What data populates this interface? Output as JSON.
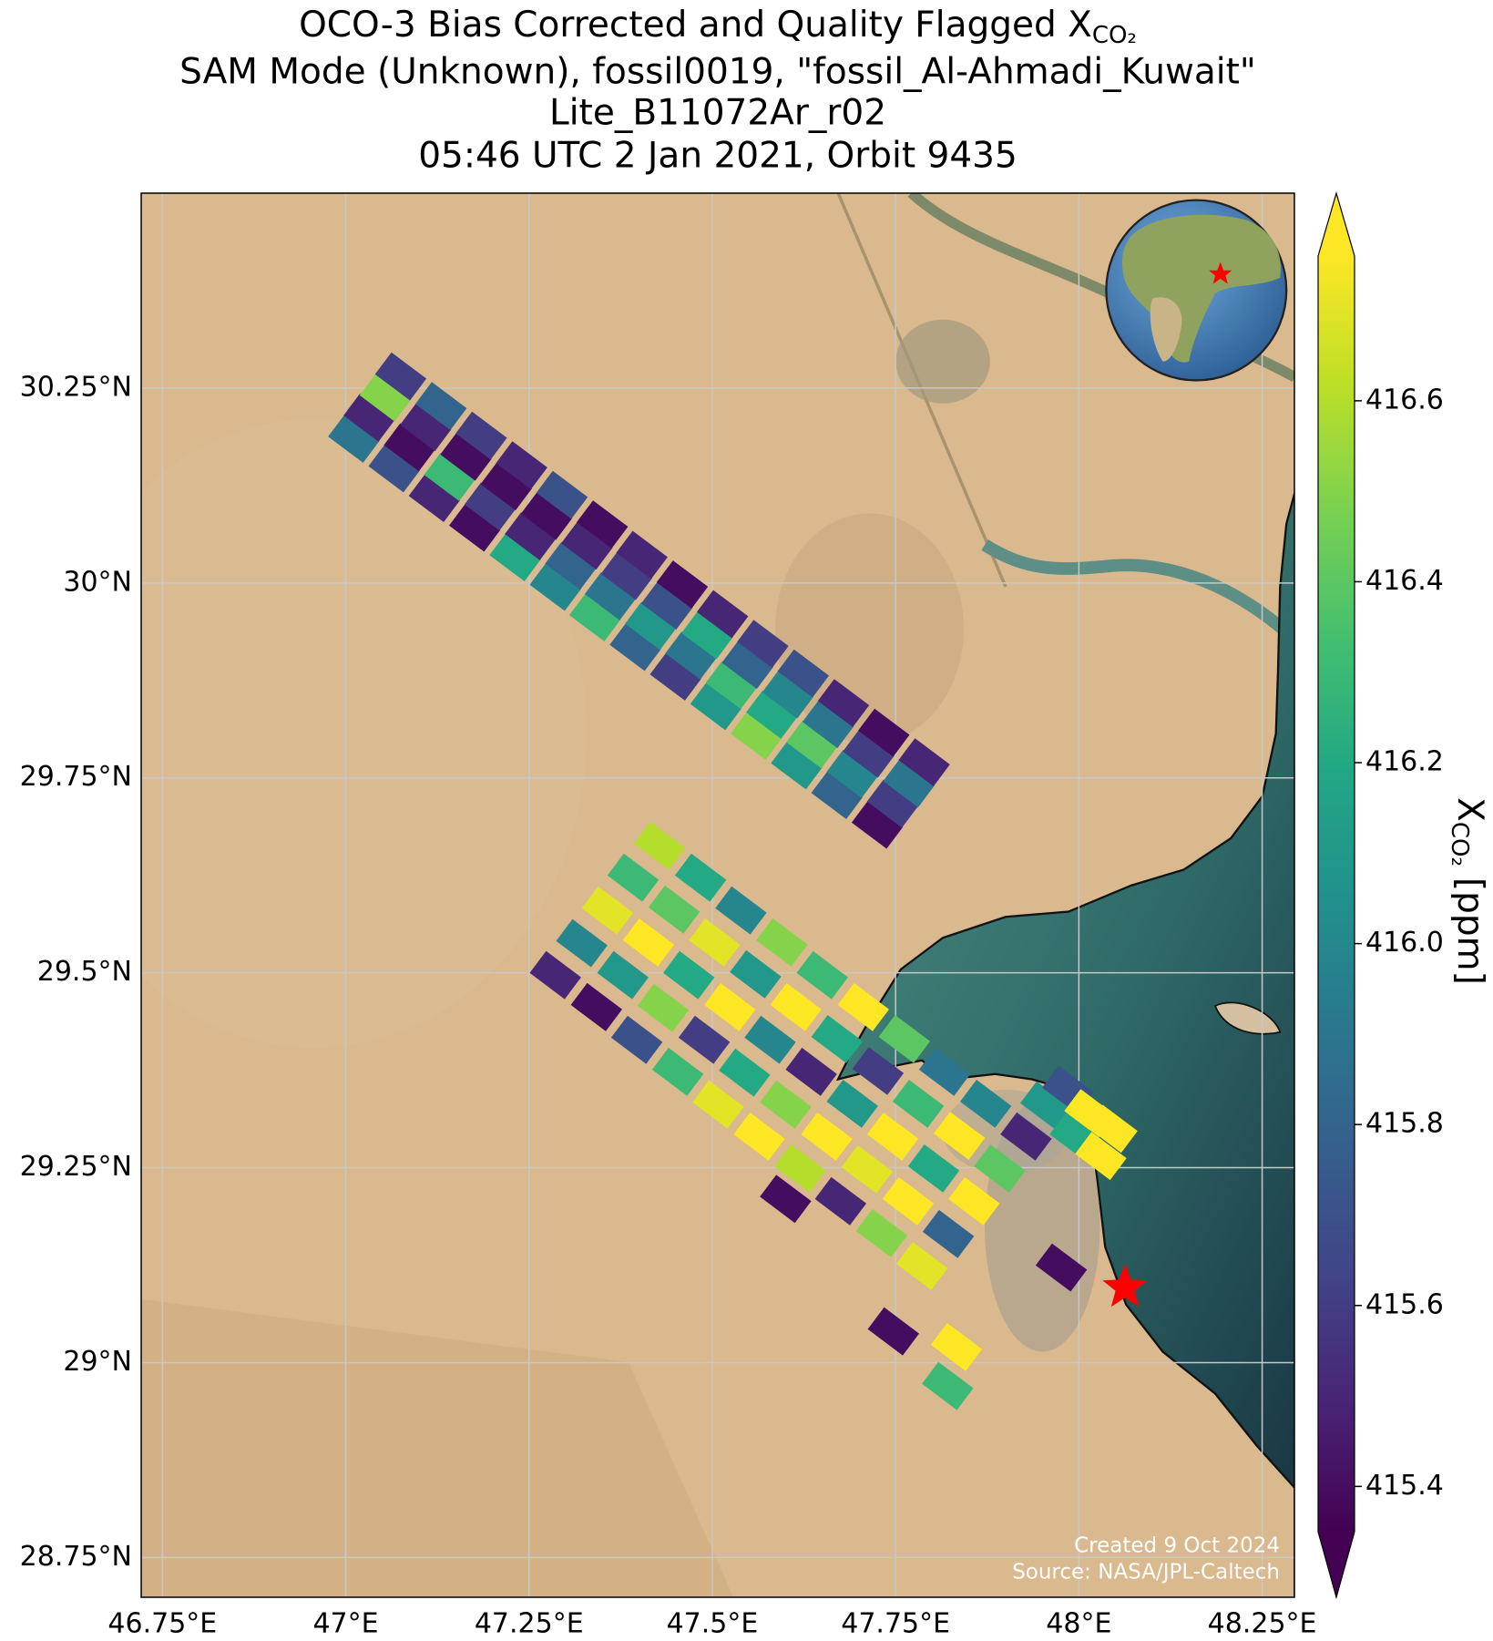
{
  "chart_data": {
    "type": "map",
    "title": [
      {
        "text": "OCO-3 Bias Corrected and Quality Flagged X",
        "subscript": "CO₂"
      },
      "SAM Mode (Unknown), fossil0019, \"fossil_Al-Ahmadi_Kuwait\"",
      "Lite_B11072Ar_r02",
      "05:46 UTC 2 Jan 2021, Orbit 9435"
    ],
    "xlim": [
      46.721,
      48.294
    ],
    "ylim": [
      28.699,
      30.5
    ],
    "xticks": [
      {
        "value": 46.75,
        "label": "46.75°E"
      },
      {
        "value": 47,
        "label": "47°E"
      },
      {
        "value": 47.25,
        "label": "47.25°E"
      },
      {
        "value": 47.5,
        "label": "47.5°E"
      },
      {
        "value": 47.75,
        "label": "47.75°E"
      },
      {
        "value": 48,
        "label": "48°E"
      },
      {
        "value": 48.25,
        "label": "48.25°E"
      }
    ],
    "yticks": [
      {
        "value": 28.75,
        "label": "28.75°N"
      },
      {
        "value": 29,
        "label": "29°N"
      },
      {
        "value": 29.25,
        "label": "29.25°N"
      },
      {
        "value": 29.5,
        "label": "29.5°N"
      },
      {
        "value": 29.75,
        "label": "29.75°N"
      },
      {
        "value": 30,
        "label": "30°N"
      },
      {
        "value": 30.25,
        "label": "30.25°N"
      }
    ],
    "grid": true,
    "colormap": "viridis",
    "clim": [
      415.35,
      416.76
    ],
    "colorbar_ticks": [
      415.4,
      415.6,
      415.8,
      {
        "value": 416,
        "label": "416.0"
      },
      416.2,
      416.4,
      416.6
    ],
    "colorbar_label": {
      "text": "X",
      "subscript": "CO₂",
      "unit": "[ppm]"
    },
    "target": {
      "lon": 48.063,
      "lat": 29.096,
      "color": "#ff0000"
    },
    "credits": [
      "Created 9 Oct 2024",
      "Source: NASA/JPL-Caltech"
    ],
    "soundings": {
      "lon": [
        47.011,
        47.032,
        47.054,
        47.075,
        47.066,
        47.087,
        47.109,
        47.13,
        47.121,
        47.142,
        47.164,
        47.185,
        47.176,
        47.197,
        47.219,
        47.24,
        47.231,
        47.252,
        47.274,
        47.295,
        47.286,
        47.307,
        47.329,
        47.35,
        47.34,
        47.361,
        47.383,
        47.404,
        47.395,
        47.416,
        47.438,
        47.459,
        47.45,
        47.471,
        47.493,
        47.514,
        47.505,
        47.526,
        47.548,
        47.569,
        47.56,
        47.581,
        47.603,
        47.624,
        47.615,
        47.636,
        47.658,
        47.679,
        47.67,
        47.691,
        47.713,
        47.734,
        47.725,
        47.746,
        47.768,
        47.789,
        47.286,
        47.322,
        47.357,
        47.392,
        47.428,
        47.342,
        47.378,
        47.413,
        47.448,
        47.484,
        47.397,
        47.433,
        47.468,
        47.503,
        47.539,
        47.453,
        47.489,
        47.524,
        47.559,
        47.595,
        47.508,
        47.544,
        47.579,
        47.614,
        47.65,
        47.564,
        47.6,
        47.635,
        47.67,
        47.706,
        47.62,
        47.656,
        47.691,
        47.726,
        47.762,
        47.675,
        47.711,
        47.746,
        47.781,
        47.817,
        47.731,
        47.767,
        47.802,
        47.837,
        47.873,
        47.786,
        47.822,
        47.857,
        47.892,
        47.928,
        47.955,
        47.985,
        48.015,
        48.045,
        47.995,
        48.03,
        47.6,
        47.976,
        47.747,
        47.833,
        47.821
      ],
      "lat": [
        30.185,
        30.212,
        30.238,
        30.265,
        30.147,
        30.174,
        30.2,
        30.227,
        30.109,
        30.136,
        30.162,
        30.189,
        30.071,
        30.098,
        30.124,
        30.151,
        30.033,
        30.06,
        30.086,
        30.113,
        29.995,
        30.022,
        30.048,
        30.075,
        29.956,
        29.983,
        30.009,
        30.036,
        29.918,
        29.945,
        29.971,
        29.998,
        29.88,
        29.907,
        29.933,
        29.96,
        29.842,
        29.869,
        29.895,
        29.922,
        29.804,
        29.831,
        29.857,
        29.884,
        29.766,
        29.793,
        29.819,
        29.846,
        29.728,
        29.755,
        29.781,
        29.808,
        29.69,
        29.717,
        29.743,
        29.77,
        29.497,
        29.538,
        29.58,
        29.622,
        29.663,
        29.456,
        29.497,
        29.539,
        29.581,
        29.622,
        29.414,
        29.455,
        29.497,
        29.539,
        29.58,
        29.373,
        29.414,
        29.456,
        29.498,
        29.539,
        29.331,
        29.372,
        29.414,
        29.456,
        29.497,
        29.29,
        29.331,
        29.373,
        29.415,
        29.456,
        29.249,
        29.29,
        29.332,
        29.374,
        29.415,
        29.207,
        29.248,
        29.29,
        29.332,
        29.373,
        29.166,
        29.207,
        29.249,
        29.291,
        29.332,
        29.124,
        29.165,
        29.207,
        29.249,
        29.29,
        29.33,
        29.35,
        29.32,
        29.3,
        29.29,
        29.265,
        29.21,
        29.122,
        29.04,
        29.02,
        28.97
      ],
      "xco2": [
        415.9,
        415.5,
        416.5,
        415.6,
        415.7,
        415.4,
        415.5,
        415.8,
        415.5,
        416.3,
        415.4,
        415.6,
        415.4,
        415.6,
        415.4,
        415.5,
        416.2,
        415.5,
        415.4,
        415.7,
        416.0,
        415.8,
        415.5,
        415.4,
        416.3,
        415.9,
        415.6,
        415.5,
        415.8,
        416.1,
        415.7,
        415.4,
        415.6,
        415.9,
        416.2,
        415.5,
        416.1,
        416.3,
        415.8,
        415.6,
        416.5,
        416.2,
        416.0,
        415.7,
        416.1,
        416.4,
        415.9,
        415.5,
        415.8,
        416.0,
        415.6,
        415.4,
        415.4,
        415.6,
        415.9,
        415.5,
        415.5,
        416.0,
        416.7,
        416.3,
        416.6,
        415.4,
        416.1,
        416.8,
        416.4,
        416.2,
        415.7,
        416.5,
        416.2,
        416.7,
        416.0,
        416.3,
        415.6,
        416.8,
        416.1,
        416.5,
        416.7,
        416.2,
        416.0,
        416.9,
        416.3,
        416.8,
        416.5,
        415.5,
        416.2,
        416.8,
        416.6,
        416.9,
        416.1,
        415.6,
        416.4,
        415.5,
        416.7,
        416.8,
        416.3,
        415.9,
        416.5,
        416.9,
        416.2,
        416.8,
        416.0,
        416.7,
        415.8,
        416.9,
        416.4,
        415.5,
        416.1,
        415.7,
        416.8,
        416.9,
        416.2,
        416.8,
        415.4,
        415.4,
        415.4,
        416.8,
        416.3
      ]
    }
  }
}
